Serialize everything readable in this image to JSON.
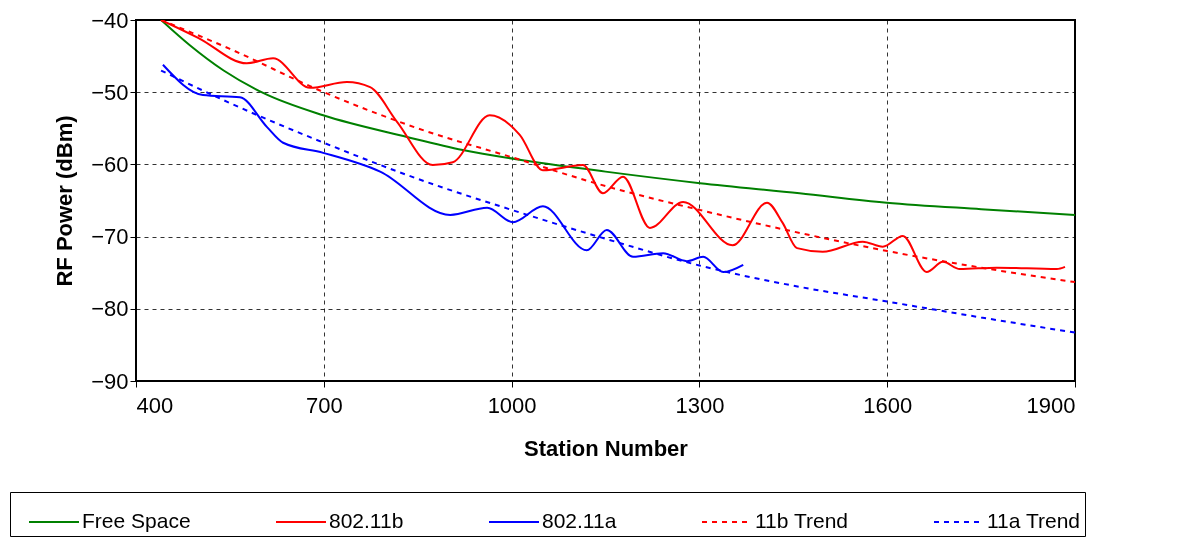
{
  "chart_data": {
    "type": "line",
    "xlabel": "Station Number",
    "ylabel": "RF Power (dBm)",
    "xlim": [
      400,
      1900
    ],
    "xticks": [
      400,
      700,
      1000,
      1300,
      1600,
      1900
    ],
    "ylim": [
      -90,
      -40
    ],
    "yticks": [
      -90,
      -80,
      -70,
      -60,
      -50,
      -40
    ],
    "grid": true,
    "legend": "bottom",
    "series": [
      {
        "name": "Free Space",
        "color": "#008000",
        "line_style": "solid",
        "x": [
          440,
          486,
          540,
          603,
          699,
          833,
          922,
          1024,
          1150,
          1301,
          1460,
          1599,
          1750,
          1900
        ],
        "values": [
          -40,
          -43.5,
          -47,
          -50.1,
          -53.2,
          -56.2,
          -58,
          -59.5,
          -61,
          -62.6,
          -64,
          -65.3,
          -66.2,
          -67
        ]
      },
      {
        "name": "802.11b",
        "color": "#ff0000",
        "line_style": "solid",
        "x": [
          440,
          500,
          577,
          619,
          678,
          737,
          774,
          817,
          874,
          906,
          965,
          1013,
          1050,
          1114,
          1146,
          1178,
          1221,
          1274,
          1353,
          1408,
          1433,
          1456,
          1497,
          1561,
          1593,
          1625,
          1663,
          1689,
          1716,
          1775,
          1871,
          1884
        ],
        "values": [
          -40,
          -42.5,
          -46,
          -45.3,
          -49.4,
          -48.6,
          -49.3,
          -54.1,
          -60.1,
          -59.7,
          -53.2,
          -55.9,
          -60.8,
          -60.1,
          -64,
          -61.7,
          -68.8,
          -65.2,
          -71.2,
          -65.3,
          -68.1,
          -71.6,
          -72.1,
          -70.7,
          -71.4,
          -69.9,
          -74.9,
          -73.5,
          -74.5,
          -74.3,
          -74.5,
          -74.2
        ]
      },
      {
        "name": "802.11a",
        "color": "#0000ff",
        "line_style": "solid",
        "x": [
          443,
          507,
          566,
          609,
          635,
          699,
          790,
          902,
          961,
          1002,
          1050,
          1120,
          1152,
          1194,
          1242,
          1280,
          1306,
          1338,
          1370
        ],
        "values": [
          -46.2,
          -50.4,
          -50.7,
          -54.8,
          -57,
          -58.4,
          -61,
          -67,
          -66,
          -68,
          -65.8,
          -71.9,
          -69.1,
          -72.8,
          -72.3,
          -73.4,
          -72.8,
          -74.9,
          -73.9
        ]
      },
      {
        "name": "11b Trend",
        "color": "#ff0000",
        "line_style": "dashed",
        "x": [
          440,
          550,
          700,
          850,
          1000,
          1150,
          1300,
          1450,
          1600,
          1750,
          1900
        ],
        "values": [
          -40,
          -44,
          -50,
          -55,
          -59,
          -63,
          -66.3,
          -69.3,
          -72,
          -74.3,
          -76.3
        ]
      },
      {
        "name": "11a Trend",
        "color": "#0000ff",
        "line_style": "dashed",
        "x": [
          440,
          550,
          700,
          850,
          1000,
          1150,
          1300,
          1450,
          1600,
          1750,
          1900
        ],
        "values": [
          -47,
          -51.5,
          -57,
          -62,
          -66.3,
          -70.3,
          -74,
          -76.8,
          -79,
          -81.2,
          -83.3
        ]
      }
    ]
  }
}
